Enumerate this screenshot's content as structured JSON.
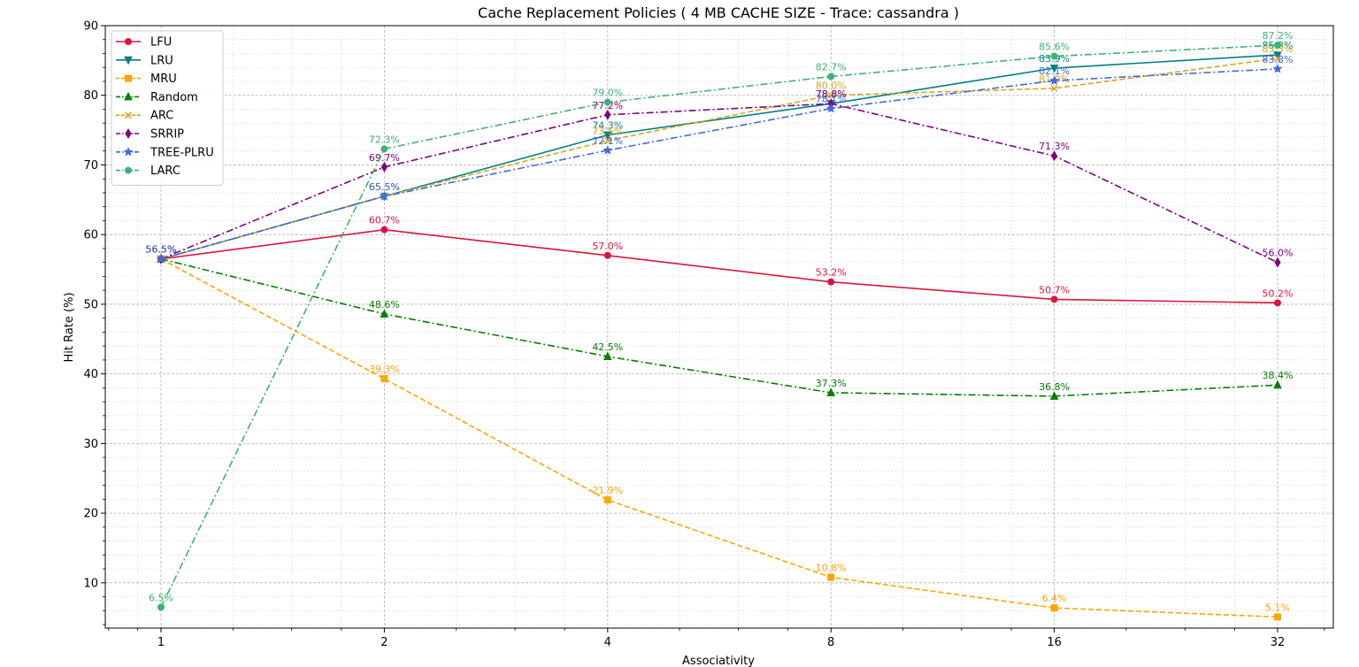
{
  "chart_data": {
    "type": "line",
    "title": "Cache Replacement Policies ( 4 MB CACHE SIZE - Trace: cassandra )",
    "xlabel": "Associativity",
    "ylabel": "Hit Rate (%)",
    "x_scale": "log2",
    "x": [
      1,
      2,
      4,
      8,
      16,
      32
    ],
    "x_tick_labels": [
      "1",
      "2",
      "4",
      "8",
      "16",
      "32"
    ],
    "ylim": [
      3.5,
      90
    ],
    "y_ticks": [
      10,
      20,
      30,
      40,
      50,
      60,
      70,
      80,
      90
    ],
    "grid": true,
    "legend_position": "top-left",
    "series": [
      {
        "name": "LFU",
        "color": "#dc143c",
        "marker": "circle",
        "dash": "solid",
        "values": [
          56.5,
          60.7,
          57.0,
          53.2,
          50.7,
          50.2
        ],
        "labels": [
          "56.5%",
          "60.7%",
          "57.0%",
          "53.2%",
          "50.7%",
          "50.2%"
        ]
      },
      {
        "name": "LRU",
        "color": "#008080",
        "marker": "triangle-down",
        "dash": "solid",
        "values": [
          56.5,
          65.5,
          74.3,
          78.8,
          83.9,
          85.8
        ],
        "labels": [
          "56.5%",
          "65.5%",
          "74.3%",
          "78.8%",
          "83.9%",
          "85.8%"
        ]
      },
      {
        "name": "MRU",
        "color": "#ffa500",
        "marker": "square",
        "dash": "dashed",
        "values": [
          56.5,
          39.3,
          21.9,
          10.8,
          6.4,
          5.1
        ],
        "labels": [
          "56.5%",
          "39.3%",
          "21.9%",
          "10.8%",
          "6.4%",
          "5.1%"
        ]
      },
      {
        "name": "Random",
        "color": "#008000",
        "marker": "triangle-up",
        "dash": "dashdot",
        "values": [
          56.5,
          48.6,
          42.5,
          37.3,
          36.8,
          38.4
        ],
        "labels": [
          "56.5%",
          "48.6%",
          "42.5%",
          "37.3%",
          "36.8%",
          "38.4%"
        ]
      },
      {
        "name": "ARC",
        "color": "#daa520",
        "marker": "x",
        "dash": "dashed",
        "values": [
          56.5,
          65.5,
          73.5,
          80.0,
          81.0,
          85.3
        ],
        "labels": [
          "56.5%",
          "65.5%",
          "73.5%",
          "80.0%",
          "81.0%",
          "85.3%"
        ]
      },
      {
        "name": "SRRIP",
        "color": "#800080",
        "marker": "diamond",
        "dash": "dashdot",
        "values": [
          56.5,
          69.7,
          77.2,
          78.8,
          71.3,
          56.0
        ],
        "labels": [
          "56.5%",
          "69.7%",
          "77.2%",
          "78.8%",
          "71.3%",
          "56.0%"
        ]
      },
      {
        "name": "TREE-PLRU",
        "color": "#4169e1",
        "marker": "star",
        "dash": "dashdot",
        "values": [
          56.5,
          65.5,
          72.1,
          78.1,
          82.1,
          83.8
        ],
        "labels": [
          "56.5%",
          "65.5%",
          "72.1%",
          "78.1%",
          "82.1%",
          "83.8%"
        ]
      },
      {
        "name": "LARC",
        "color": "#3cb371",
        "marker": "circle",
        "dash": "dashdot",
        "values": [
          6.5,
          72.3,
          79.0,
          82.7,
          85.6,
          87.2
        ],
        "labels": [
          "6.5%",
          "72.3%",
          "79.0%",
          "82.7%",
          "85.6%",
          "87.2%"
        ]
      }
    ]
  }
}
